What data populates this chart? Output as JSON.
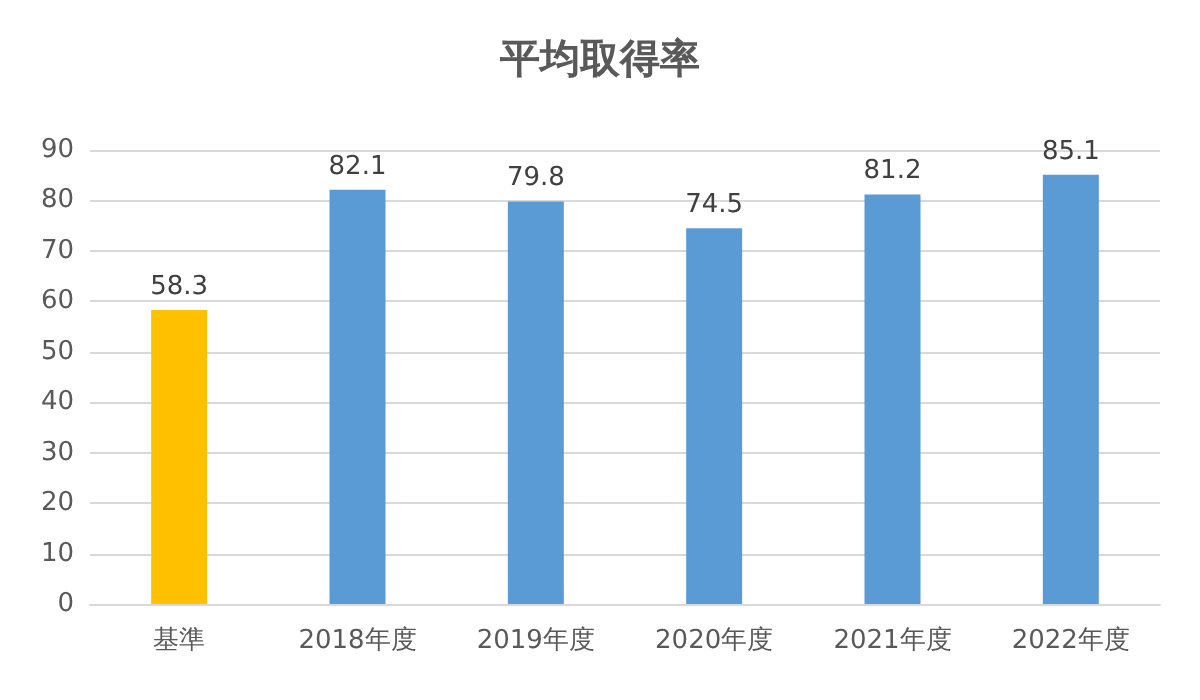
{
  "chart_data": {
    "type": "bar",
    "title": "平均取得率",
    "categories": [
      "基準",
      "2018年度",
      "2019年度",
      "2020年度",
      "2021年度",
      "2022年度"
    ],
    "values": [
      58.3,
      82.1,
      79.8,
      74.5,
      81.2,
      85.1
    ],
    "colors": [
      "#ffc000",
      "#5b9bd5",
      "#5b9bd5",
      "#5b9bd5",
      "#5b9bd5",
      "#5b9bd5"
    ],
    "ylim": [
      0,
      90
    ],
    "yticks": [
      0,
      10,
      20,
      30,
      40,
      50,
      60,
      70,
      80,
      90
    ],
    "grid": "y",
    "data_labels": true
  }
}
